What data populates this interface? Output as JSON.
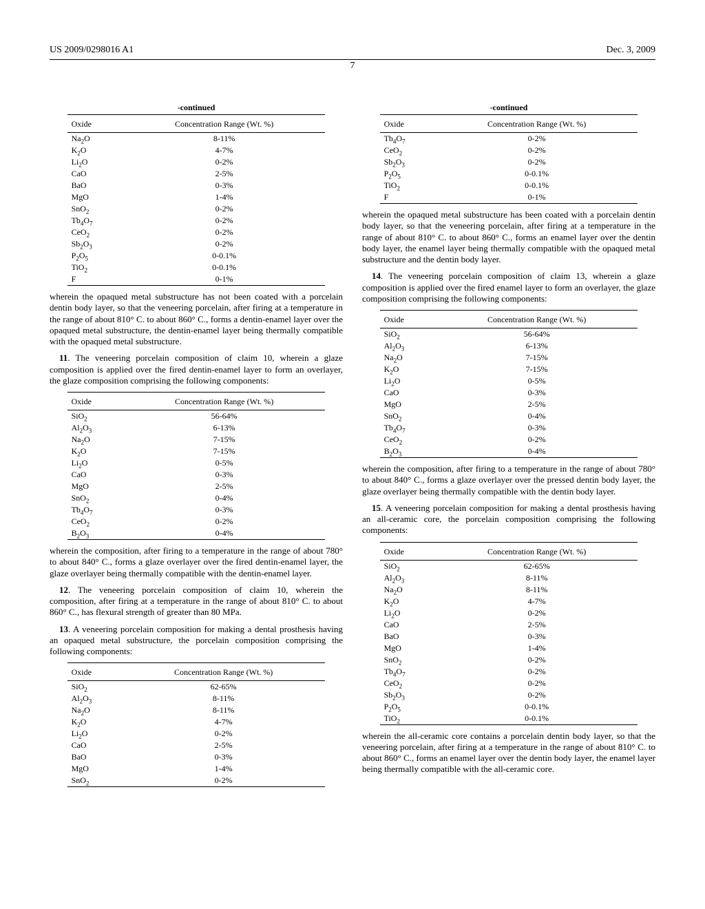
{
  "header": {
    "left": "US 2009/0298016 A1",
    "right": "Dec. 3, 2009"
  },
  "page_number": "7",
  "labels": {
    "continued": "-continued",
    "oxide": "Oxide",
    "range": "Concentration Range (Wt. %)"
  },
  "oxide_html": {
    "SiO2": "SiO<sub>2</sub>",
    "Al2O3": "Al<sub>2</sub>O<sub>3</sub>",
    "Na2O": "Na<sub>2</sub>O",
    "K2O": "K<sub>2</sub>O",
    "Li2O": "Li<sub>2</sub>O",
    "CaO": "CaO",
    "BaO": "BaO",
    "MgO": "MgO",
    "SnO2": "SnO<sub>2</sub>",
    "Tb4O7": "Tb<sub>4</sub>O<sub>7</sub>",
    "CeO2": "CeO<sub>2</sub>",
    "Sb2O3": "Sb<sub>2</sub>O<sub>3</sub>",
    "P2O5": "P<sub>2</sub>O<sub>5</sub>",
    "TiO2": "TiO<sub>2</sub>",
    "F": "F",
    "B2O3": "B<sub>2</sub>O<sub>3</sub>"
  },
  "tables": {
    "t1": {
      "continued": true,
      "rows": [
        [
          "Na2O",
          "8-11%"
        ],
        [
          "K2O",
          "4-7%"
        ],
        [
          "Li2O",
          "0-2%"
        ],
        [
          "CaO",
          "2-5%"
        ],
        [
          "BaO",
          "0-3%"
        ],
        [
          "MgO",
          "1-4%"
        ],
        [
          "SnO2",
          "0-2%"
        ],
        [
          "Tb4O7",
          "0-2%"
        ],
        [
          "CeO2",
          "0-2%"
        ],
        [
          "Sb2O3",
          "0-2%"
        ],
        [
          "P2O5",
          "0-0.1%"
        ],
        [
          "TiO2",
          "0-0.1%"
        ],
        [
          "F",
          "0-1%"
        ]
      ]
    },
    "t2": {
      "continued": false,
      "rows": [
        [
          "SiO2",
          "56-64%"
        ],
        [
          "Al2O3",
          "6-13%"
        ],
        [
          "Na2O",
          "7-15%"
        ],
        [
          "K2O",
          "7-15%"
        ],
        [
          "Li2O",
          "0-5%"
        ],
        [
          "CaO",
          "0-3%"
        ],
        [
          "MgO",
          "2-5%"
        ],
        [
          "SnO2",
          "0-4%"
        ],
        [
          "Tb4O7",
          "0-3%"
        ],
        [
          "CeO2",
          "0-2%"
        ],
        [
          "B2O3",
          "0-4%"
        ]
      ]
    },
    "t3": {
      "continued": false,
      "rows": [
        [
          "SiO2",
          "62-65%"
        ],
        [
          "Al2O3",
          "8-11%"
        ],
        [
          "Na2O",
          "8-11%"
        ],
        [
          "K2O",
          "4-7%"
        ],
        [
          "Li2O",
          "0-2%"
        ],
        [
          "CaO",
          "2-5%"
        ],
        [
          "BaO",
          "0-3%"
        ],
        [
          "MgO",
          "1-4%"
        ],
        [
          "SnO2",
          "0-2%"
        ]
      ]
    },
    "t4": {
      "continued": true,
      "rows": [
        [
          "Tb4O7",
          "0-2%"
        ],
        [
          "CeO2",
          "0-2%"
        ],
        [
          "Sb2O3",
          "0-2%"
        ],
        [
          "P2O5",
          "0-0.1%"
        ],
        [
          "TiO2",
          "0-0.1%"
        ],
        [
          "F",
          "0-1%"
        ]
      ]
    },
    "t5": {
      "continued": false,
      "rows": [
        [
          "SiO2",
          "56-64%"
        ],
        [
          "Al2O3",
          "6-13%"
        ],
        [
          "Na2O",
          "7-15%"
        ],
        [
          "K2O",
          "7-15%"
        ],
        [
          "Li2O",
          "0-5%"
        ],
        [
          "CaO",
          "0-3%"
        ],
        [
          "MgO",
          "2-5%"
        ],
        [
          "SnO2",
          "0-4%"
        ],
        [
          "Tb4O7",
          "0-3%"
        ],
        [
          "CeO2",
          "0-2%"
        ],
        [
          "B2O3",
          "0-4%"
        ]
      ]
    },
    "t6": {
      "continued": false,
      "rows": [
        [
          "SiO2",
          "62-65%"
        ],
        [
          "Al2O3",
          "8-11%"
        ],
        [
          "Na2O",
          "8-11%"
        ],
        [
          "K2O",
          "4-7%"
        ],
        [
          "Li2O",
          "0-2%"
        ],
        [
          "CaO",
          "2-5%"
        ],
        [
          "BaO",
          "0-3%"
        ],
        [
          "MgO",
          "1-4%"
        ],
        [
          "SnO2",
          "0-2%"
        ],
        [
          "Tb4O7",
          "0-2%"
        ],
        [
          "CeO2",
          "0-2%"
        ],
        [
          "Sb2O3",
          "0-2%"
        ],
        [
          "P2O5",
          "0-0.1%"
        ],
        [
          "TiO2",
          "0-0.1%"
        ]
      ]
    }
  },
  "paras": {
    "p1": "wherein the opaqued metal substructure has not been coated with a porcelain dentin body layer, so that the veneering porcelain, after firing at a temperature in the range of about 810° C. to about 860° C., forms a dentin-enamel layer over the opaqued metal substructure, the dentin-enamel layer being thermally compatible with the opaqued metal substructure.",
    "p2_pre": "11",
    "p2": ". The veneering porcelain composition of claim 10, wherein a glaze composition is applied over the fired dentin-enamel layer to form an overlayer, the glaze composition comprising the following components:",
    "p3": "wherein the composition, after firing to a temperature in the range of about 780° to about 840° C., forms a glaze overlayer over the fired dentin-enamel layer, the glaze overlayer being thermally compatible with the dentin-enamel layer.",
    "p4_pre": "12",
    "p4": ". The veneering porcelain composition of claim 10, wherein the composition, after firing at a temperature in the range of about 810° C. to about 860° C., has flexural strength of greater than 80 MPa.",
    "p5_pre": "13",
    "p5": ". A veneering porcelain composition for making a dental prosthesis having an opaqued metal substructure, the porcelain composition comprising the following components:",
    "p6": "wherein the opaqued metal substructure has been coated with a porcelain dentin body layer, so that the veneering porcelain, after firing at a temperature in the range of about 810° C. to about 860° C., forms an enamel layer over the dentin body layer, the enamel layer being thermally compatible with the opaqued metal substructure and the dentin body layer.",
    "p7_pre": "14",
    "p7": ". The veneering porcelain composition of claim 13, wherein a glaze composition is applied over the fired enamel layer to form an overlayer, the glaze composition comprising the following components:",
    "p8": "wherein the composition, after firing to a temperature in the range of about 780° to about 840° C., forms a glaze overlayer over the pressed dentin body layer, the glaze overlayer being thermally compatible with the dentin body layer.",
    "p9_pre": "15",
    "p9": ". A veneering porcelain composition for making a dental prosthesis having an all-ceramic core, the porcelain composition comprising the following components:",
    "p10": "wherein the all-ceramic core contains a porcelain dentin body layer, so that the veneering porcelain, after firing at a temperature in the range of about 810° C. to about 860° C., forms an enamel layer over the dentin body layer, the enamel layer being thermally compatible with the all-ceramic core."
  }
}
